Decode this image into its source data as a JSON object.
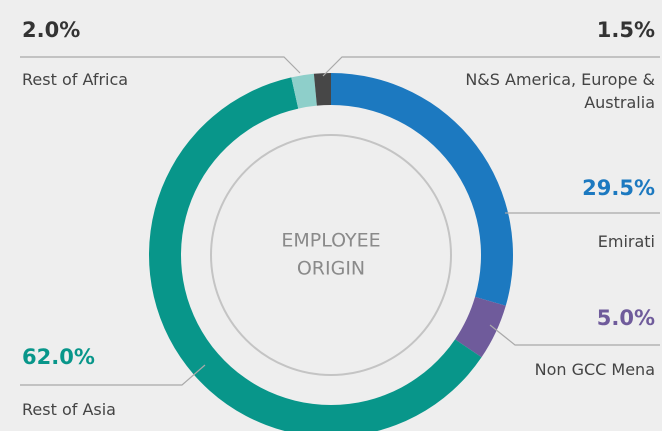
{
  "chart_data": {
    "type": "pie",
    "center_label": [
      "EMPLOYEE",
      "ORIGIN"
    ],
    "categories": [
      "Emirati",
      "Non GCC Mena",
      "Rest of Asia",
      "Rest of Africa",
      "N&S America, Europe & Australia"
    ],
    "values": [
      29.5,
      5.0,
      62.0,
      2.0,
      1.5
    ],
    "value_labels": [
      "29.5%",
      "5.0%",
      "62.0%",
      "2.0%",
      "1.5%"
    ],
    "colors": [
      "#1c79c0",
      "#6f5b9b",
      "#08968a",
      "#8ecfca",
      "#474747"
    ]
  }
}
